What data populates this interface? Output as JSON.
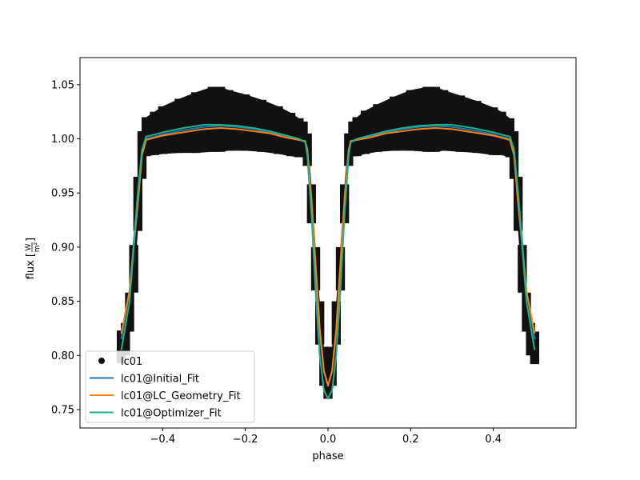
{
  "chart_data": {
    "type": "line",
    "xlabel": "phase",
    "ylabel_prefix": "flux [",
    "ylabel_unit_num": "W",
    "ylabel_unit_den": "m²",
    "ylabel_suffix": "]",
    "xlim": [
      -0.6,
      0.6
    ],
    "ylim": [
      0.733,
      1.075
    ],
    "xticks": [
      -0.4,
      -0.2,
      0.0,
      0.2,
      0.4
    ],
    "xtick_labels": [
      "−0.4",
      "−0.2",
      "0.0",
      "0.2",
      "0.4"
    ],
    "yticks": [
      0.75,
      0.8,
      0.85,
      0.9,
      0.95,
      1.0,
      1.05
    ],
    "ytick_labels": [
      "0.75",
      "0.80",
      "0.85",
      "0.90",
      "0.95",
      "1.00",
      "1.05"
    ],
    "grid": false,
    "legend_position": "lower-left",
    "series": [
      {
        "name": "lc01",
        "kind": "errorbar-scatter",
        "color": "#111111",
        "x": [
          -0.5,
          -0.49,
          -0.48,
          -0.47,
          -0.46,
          -0.45,
          -0.44,
          -0.42,
          -0.4,
          -0.36,
          -0.32,
          -0.28,
          -0.26,
          -0.24,
          -0.2,
          -0.16,
          -0.12,
          -0.09,
          -0.07,
          -0.06,
          -0.05,
          -0.04,
          -0.03,
          -0.02,
          -0.01,
          0.0,
          0.01,
          0.02,
          0.03,
          0.04,
          0.05,
          0.06,
          0.07,
          0.09,
          0.12,
          0.16,
          0.2,
          0.24,
          0.26,
          0.28,
          0.32,
          0.36,
          0.4,
          0.42,
          0.44,
          0.45,
          0.46,
          0.47,
          0.48,
          0.49,
          0.5
        ],
        "y": [
          0.808,
          0.815,
          0.84,
          0.88,
          0.94,
          0.985,
          1.002,
          1.005,
          1.008,
          1.012,
          1.015,
          1.018,
          1.018,
          1.017,
          1.015,
          1.012,
          1.008,
          1.004,
          1.001,
          1.0,
          0.99,
          0.94,
          0.88,
          0.83,
          0.79,
          0.775,
          0.79,
          0.83,
          0.88,
          0.94,
          0.99,
          1.0,
          1.002,
          1.006,
          1.01,
          1.014,
          1.017,
          1.018,
          1.018,
          1.017,
          1.014,
          1.011,
          1.007,
          1.005,
          1.001,
          0.985,
          0.94,
          0.88,
          0.84,
          0.815,
          0.807
        ],
        "err": [
          0.015,
          0.015,
          0.018,
          0.022,
          0.025,
          0.022,
          0.018,
          0.02,
          0.022,
          0.025,
          0.028,
          0.03,
          0.03,
          0.028,
          0.026,
          0.024,
          0.022,
          0.02,
          0.018,
          0.016,
          0.015,
          0.018,
          0.02,
          0.02,
          0.018,
          0.015,
          0.018,
          0.02,
          0.02,
          0.018,
          0.015,
          0.016,
          0.018,
          0.02,
          0.022,
          0.025,
          0.028,
          0.03,
          0.03,
          0.028,
          0.026,
          0.024,
          0.022,
          0.02,
          0.018,
          0.022,
          0.025,
          0.022,
          0.018,
          0.015,
          0.015
        ]
      },
      {
        "name": "lc01@Initial_Fit",
        "kind": "line",
        "color": "#1f77b4",
        "x": [
          -0.5,
          -0.48,
          -0.46,
          -0.45,
          -0.44,
          -0.4,
          -0.35,
          -0.3,
          -0.26,
          -0.22,
          -0.18,
          -0.14,
          -0.1,
          -0.07,
          -0.055,
          -0.05,
          -0.04,
          -0.03,
          -0.02,
          -0.01,
          0.0,
          0.01,
          0.02,
          0.03,
          0.04,
          0.05,
          0.055,
          0.07,
          0.1,
          0.14,
          0.18,
          0.22,
          0.26,
          0.3,
          0.35,
          0.4,
          0.44,
          0.45,
          0.46,
          0.48,
          0.5
        ],
        "y": [
          0.815,
          0.86,
          0.95,
          0.99,
          1.0,
          1.004,
          1.008,
          1.011,
          1.012,
          1.011,
          1.009,
          1.006,
          1.002,
          0.999,
          0.997,
          0.99,
          0.94,
          0.88,
          0.82,
          0.785,
          0.773,
          0.785,
          0.82,
          0.88,
          0.94,
          0.99,
          0.997,
          0.999,
          1.002,
          1.006,
          1.009,
          1.011,
          1.012,
          1.011,
          1.008,
          1.004,
          1.0,
          0.99,
          0.95,
          0.86,
          0.815
        ]
      },
      {
        "name": "lc01@LC_Geometry_Fit",
        "kind": "line",
        "color": "#ff7f0e",
        "x": [
          -0.5,
          -0.48,
          -0.46,
          -0.45,
          -0.44,
          -0.4,
          -0.35,
          -0.3,
          -0.26,
          -0.22,
          -0.18,
          -0.14,
          -0.1,
          -0.07,
          -0.055,
          -0.05,
          -0.04,
          -0.03,
          -0.02,
          -0.01,
          0.0,
          0.01,
          0.02,
          0.03,
          0.04,
          0.05,
          0.055,
          0.07,
          0.1,
          0.14,
          0.18,
          0.22,
          0.26,
          0.3,
          0.35,
          0.4,
          0.44,
          0.45,
          0.46,
          0.48,
          0.5
        ],
        "y": [
          0.82,
          0.86,
          0.94,
          0.985,
          0.999,
          1.003,
          1.006,
          1.009,
          1.01,
          1.009,
          1.007,
          1.005,
          1.001,
          0.999,
          0.998,
          0.99,
          0.945,
          0.885,
          0.825,
          0.786,
          0.772,
          0.786,
          0.825,
          0.885,
          0.945,
          0.99,
          0.998,
          0.999,
          1.001,
          1.005,
          1.007,
          1.009,
          1.01,
          1.009,
          1.006,
          1.003,
          0.999,
          0.985,
          0.94,
          0.86,
          0.82
        ]
      },
      {
        "name": "lc01@Optimizer_Fit",
        "kind": "line",
        "color": "#1cb386",
        "x": [
          -0.5,
          -0.48,
          -0.46,
          -0.45,
          -0.44,
          -0.4,
          -0.35,
          -0.3,
          -0.26,
          -0.22,
          -0.18,
          -0.14,
          -0.1,
          -0.07,
          -0.055,
          -0.05,
          -0.04,
          -0.03,
          -0.02,
          -0.01,
          0.0,
          0.01,
          0.02,
          0.03,
          0.04,
          0.05,
          0.055,
          0.07,
          0.1,
          0.14,
          0.18,
          0.22,
          0.26,
          0.3,
          0.35,
          0.4,
          0.44,
          0.45,
          0.46,
          0.48,
          0.5
        ],
        "y": [
          0.805,
          0.85,
          0.95,
          0.99,
          1.002,
          1.006,
          1.01,
          1.013,
          1.013,
          1.012,
          1.01,
          1.007,
          1.003,
          1.0,
          0.997,
          0.985,
          0.93,
          0.86,
          0.8,
          0.768,
          0.76,
          0.768,
          0.8,
          0.86,
          0.93,
          0.985,
          0.997,
          1.0,
          1.003,
          1.007,
          1.01,
          1.012,
          1.013,
          1.013,
          1.01,
          1.006,
          1.002,
          0.99,
          0.95,
          0.85,
          0.805
        ]
      }
    ]
  }
}
